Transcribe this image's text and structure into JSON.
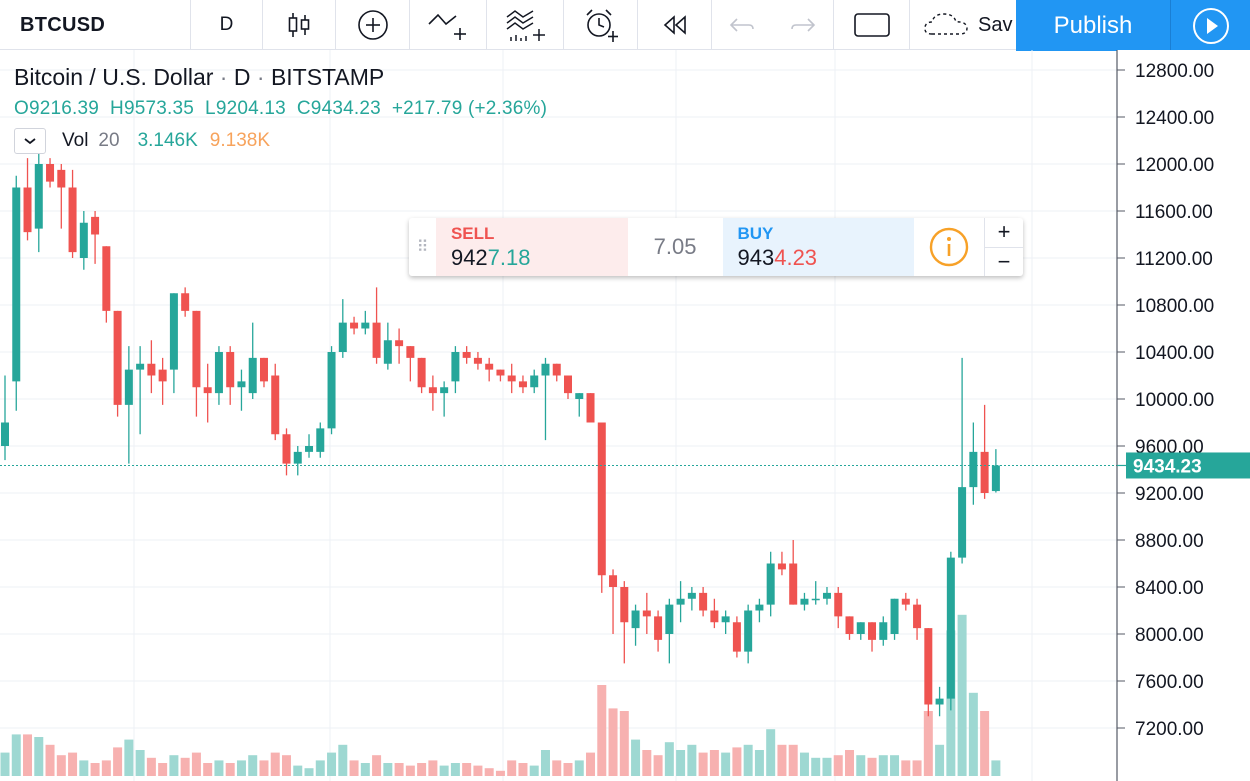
{
  "toolbar": {
    "symbol": "BTCUSD",
    "resolution": "D",
    "save_label": "Sav",
    "publish_label": "Publish"
  },
  "legend": {
    "title": "Bitcoin / U.S. Dollar",
    "sep": "·",
    "interval": "D",
    "exchange": "BITSTAMP",
    "open": "9216.39",
    "high": "9573.35",
    "low": "9204.13",
    "close": "9434.23",
    "change": "+217.79 (+2.36%)",
    "volume_label": "Vol",
    "volume_length": "20",
    "volume_value": "3.146K",
    "volume_ma": "9.138K"
  },
  "trade": {
    "sell_label": "SELL",
    "sell_price_main": "942",
    "sell_price_hl": "7.18",
    "spread": "7.05",
    "buy_label": "BUY",
    "buy_price_main": "943",
    "buy_price_hl": "4.23",
    "plus": "+",
    "minus": "−"
  },
  "colors": {
    "up": "#26a69a",
    "down": "#ef5350",
    "vol_up": "#9ed8d2",
    "vol_down": "#f7b1b0",
    "accent": "#2196f3",
    "info": "#f7a128"
  },
  "chart_data": {
    "type": "candlestick",
    "title": "Bitcoin / U.S. Dollar · D · BITSTAMP",
    "ylim": [
      6950,
      13000
    ],
    "y_ticks": [
      "12800.00",
      "12400.00",
      "12000.00",
      "11600.00",
      "11200.00",
      "10800.00",
      "10400.00",
      "10000.00",
      "9600.00",
      "9200.00",
      "8800.00",
      "8400.00",
      "8000.00",
      "7600.00",
      "7200.00"
    ],
    "last_price": "9434.23",
    "grid": true,
    "candles": [
      {
        "o": 9600,
        "h": 10200,
        "l": 9480,
        "c": 9800,
        "v": 0.9
      },
      {
        "o": 10150,
        "h": 11900,
        "l": 9900,
        "c": 11800,
        "v": 1.6
      },
      {
        "o": 11800,
        "h": 12050,
        "l": 11350,
        "c": 11420,
        "v": 1.6
      },
      {
        "o": 11450,
        "h": 12150,
        "l": 11250,
        "c": 12000,
        "v": 1.5
      },
      {
        "o": 12000,
        "h": 12050,
        "l": 11800,
        "c": 11850,
        "v": 1.2
      },
      {
        "o": 11950,
        "h": 12000,
        "l": 11450,
        "c": 11800,
        "v": 0.8
      },
      {
        "o": 11800,
        "h": 11950,
        "l": 11200,
        "c": 11250,
        "v": 0.9
      },
      {
        "o": 11200,
        "h": 11600,
        "l": 11100,
        "c": 11500,
        "v": 0.6
      },
      {
        "o": 11550,
        "h": 11600,
        "l": 11150,
        "c": 11400,
        "v": 0.5
      },
      {
        "o": 11300,
        "h": 11300,
        "l": 10650,
        "c": 10750,
        "v": 0.6
      },
      {
        "o": 10750,
        "h": 10750,
        "l": 9850,
        "c": 9950,
        "v": 1.1
      },
      {
        "o": 9950,
        "h": 10450,
        "l": 9450,
        "c": 10250,
        "v": 1.4
      },
      {
        "o": 10250,
        "h": 10450,
        "l": 9700,
        "c": 10300,
        "v": 1.0
      },
      {
        "o": 10300,
        "h": 10500,
        "l": 10050,
        "c": 10200,
        "v": 0.7
      },
      {
        "o": 10250,
        "h": 10350,
        "l": 9950,
        "c": 10150,
        "v": 0.5
      },
      {
        "o": 10250,
        "h": 10900,
        "l": 10050,
        "c": 10900,
        "v": 0.8
      },
      {
        "o": 10900,
        "h": 10950,
        "l": 10700,
        "c": 10750,
        "v": 0.7
      },
      {
        "o": 10750,
        "h": 10750,
        "l": 9850,
        "c": 10100,
        "v": 0.9
      },
      {
        "o": 10100,
        "h": 10300,
        "l": 9800,
        "c": 10050,
        "v": 0.5
      },
      {
        "o": 10050,
        "h": 10450,
        "l": 9950,
        "c": 10400,
        "v": 0.6
      },
      {
        "o": 10400,
        "h": 10450,
        "l": 9950,
        "c": 10100,
        "v": 0.5
      },
      {
        "o": 10100,
        "h": 10250,
        "l": 9900,
        "c": 10150,
        "v": 0.6
      },
      {
        "o": 10050,
        "h": 10650,
        "l": 10000,
        "c": 10350,
        "v": 0.8
      },
      {
        "o": 10350,
        "h": 10350,
        "l": 10100,
        "c": 10150,
        "v": 0.6
      },
      {
        "o": 10200,
        "h": 10300,
        "l": 9650,
        "c": 9700,
        "v": 0.9
      },
      {
        "o": 9700,
        "h": 9750,
        "l": 9350,
        "c": 9450,
        "v": 0.8
      },
      {
        "o": 9450,
        "h": 9600,
        "l": 9350,
        "c": 9550,
        "v": 0.4
      },
      {
        "o": 9550,
        "h": 9700,
        "l": 9500,
        "c": 9600,
        "v": 0.3
      },
      {
        "o": 9550,
        "h": 9800,
        "l": 9500,
        "c": 9750,
        "v": 0.6
      },
      {
        "o": 9750,
        "h": 10450,
        "l": 9700,
        "c": 10400,
        "v": 0.9
      },
      {
        "o": 10400,
        "h": 10850,
        "l": 10350,
        "c": 10650,
        "v": 1.2
      },
      {
        "o": 10650,
        "h": 10700,
        "l": 10550,
        "c": 10600,
        "v": 0.6
      },
      {
        "o": 10600,
        "h": 10750,
        "l": 10550,
        "c": 10650,
        "v": 0.5
      },
      {
        "o": 10650,
        "h": 10950,
        "l": 10300,
        "c": 10350,
        "v": 0.8
      },
      {
        "o": 10300,
        "h": 10650,
        "l": 10250,
        "c": 10500,
        "v": 0.5
      },
      {
        "o": 10500,
        "h": 10600,
        "l": 10300,
        "c": 10450,
        "v": 0.5
      },
      {
        "o": 10450,
        "h": 10450,
        "l": 10150,
        "c": 10350,
        "v": 0.4
      },
      {
        "o": 10350,
        "h": 10350,
        "l": 10050,
        "c": 10100,
        "v": 0.5
      },
      {
        "o": 10100,
        "h": 10200,
        "l": 9900,
        "c": 10050,
        "v": 0.6
      },
      {
        "o": 10050,
        "h": 10150,
        "l": 9850,
        "c": 10100,
        "v": 0.4
      },
      {
        "o": 10150,
        "h": 10450,
        "l": 10050,
        "c": 10400,
        "v": 0.5
      },
      {
        "o": 10400,
        "h": 10450,
        "l": 10300,
        "c": 10350,
        "v": 0.5
      },
      {
        "o": 10350,
        "h": 10400,
        "l": 10250,
        "c": 10300,
        "v": 0.4
      },
      {
        "o": 10300,
        "h": 10350,
        "l": 10150,
        "c": 10250,
        "v": 0.3
      },
      {
        "o": 10250,
        "h": 10250,
        "l": 10150,
        "c": 10200,
        "v": 0.2
      },
      {
        "o": 10200,
        "h": 10300,
        "l": 10050,
        "c": 10150,
        "v": 0.6
      },
      {
        "o": 10150,
        "h": 10200,
        "l": 10050,
        "c": 10100,
        "v": 0.5
      },
      {
        "o": 10100,
        "h": 10250,
        "l": 10050,
        "c": 10200,
        "v": 0.4
      },
      {
        "o": 10200,
        "h": 10350,
        "l": 9650,
        "c": 10300,
        "v": 1.0
      },
      {
        "o": 10300,
        "h": 10300,
        "l": 10150,
        "c": 10200,
        "v": 0.6
      },
      {
        "o": 10200,
        "h": 10200,
        "l": 10000,
        "c": 10050,
        "v": 0.5
      },
      {
        "o": 10000,
        "h": 10050,
        "l": 9850,
        "c": 10050,
        "v": 0.6
      },
      {
        "o": 10050,
        "h": 10050,
        "l": 9800,
        "c": 9800,
        "v": 0.9
      },
      {
        "o": 9800,
        "h": 9800,
        "l": 8350,
        "c": 8500,
        "v": 3.5
      },
      {
        "o": 8500,
        "h": 8550,
        "l": 8000,
        "c": 8400,
        "v": 2.6
      },
      {
        "o": 8400,
        "h": 8450,
        "l": 7750,
        "c": 8100,
        "v": 2.5
      },
      {
        "o": 8050,
        "h": 8250,
        "l": 7900,
        "c": 8200,
        "v": 1.4
      },
      {
        "o": 8200,
        "h": 8350,
        "l": 8000,
        "c": 8150,
        "v": 1.0
      },
      {
        "o": 8150,
        "h": 8200,
        "l": 7850,
        "c": 7950,
        "v": 0.8
      },
      {
        "o": 8000,
        "h": 8300,
        "l": 7750,
        "c": 8250,
        "v": 1.3
      },
      {
        "o": 8250,
        "h": 8450,
        "l": 8100,
        "c": 8300,
        "v": 1.0
      },
      {
        "o": 8300,
        "h": 8400,
        "l": 8200,
        "c": 8350,
        "v": 1.2
      },
      {
        "o": 8350,
        "h": 8400,
        "l": 8150,
        "c": 8200,
        "v": 0.9
      },
      {
        "o": 8200,
        "h": 8300,
        "l": 8050,
        "c": 8100,
        "v": 1.0
      },
      {
        "o": 8100,
        "h": 8200,
        "l": 8000,
        "c": 8150,
        "v": 0.9
      },
      {
        "o": 8100,
        "h": 8150,
        "l": 7800,
        "c": 7850,
        "v": 1.1
      },
      {
        "o": 7850,
        "h": 8250,
        "l": 7750,
        "c": 8200,
        "v": 1.2
      },
      {
        "o": 8200,
        "h": 8300,
        "l": 8100,
        "c": 8250,
        "v": 1.0
      },
      {
        "o": 8250,
        "h": 8700,
        "l": 8150,
        "c": 8600,
        "v": 1.8
      },
      {
        "o": 8600,
        "h": 8700,
        "l": 8500,
        "c": 8550,
        "v": 1.2
      },
      {
        "o": 8600,
        "h": 8800,
        "l": 8250,
        "c": 8250,
        "v": 1.2
      },
      {
        "o": 8250,
        "h": 8350,
        "l": 8200,
        "c": 8300,
        "v": 0.9
      },
      {
        "o": 8300,
        "h": 8450,
        "l": 8250,
        "c": 8300,
        "v": 0.7
      },
      {
        "o": 8300,
        "h": 8400,
        "l": 8250,
        "c": 8350,
        "v": 0.7
      },
      {
        "o": 8350,
        "h": 8400,
        "l": 8050,
        "c": 8150,
        "v": 0.8
      },
      {
        "o": 8150,
        "h": 8150,
        "l": 7950,
        "c": 8000,
        "v": 1.0
      },
      {
        "o": 8000,
        "h": 8100,
        "l": 7950,
        "c": 8100,
        "v": 0.8
      },
      {
        "o": 8100,
        "h": 8100,
        "l": 7850,
        "c": 7950,
        "v": 0.7
      },
      {
        "o": 7950,
        "h": 8150,
        "l": 7900,
        "c": 8100,
        "v": 0.8
      },
      {
        "o": 8000,
        "h": 8300,
        "l": 7950,
        "c": 8300,
        "v": 0.8
      },
      {
        "o": 8300,
        "h": 8350,
        "l": 8200,
        "c": 8250,
        "v": 0.6
      },
      {
        "o": 8250,
        "h": 8300,
        "l": 7950,
        "c": 8050,
        "v": 0.6
      },
      {
        "o": 8050,
        "h": 8050,
        "l": 7300,
        "c": 7400,
        "v": 2.5
      },
      {
        "o": 7400,
        "h": 7550,
        "l": 7300,
        "c": 7450,
        "v": 1.2
      },
      {
        "o": 7450,
        "h": 8700,
        "l": 7350,
        "c": 8650,
        "v": 5.6
      },
      {
        "o": 8650,
        "h": 10350,
        "l": 8600,
        "c": 9250,
        "v": 6.2
      },
      {
        "o": 9250,
        "h": 9800,
        "l": 9100,
        "c": 9550,
        "v": 3.2
      },
      {
        "o": 9550,
        "h": 9950,
        "l": 9150,
        "c": 9200,
        "v": 2.5
      },
      {
        "o": 9216.39,
        "h": 9573.35,
        "l": 9204.13,
        "c": 9434.23,
        "v": 0.6
      }
    ]
  }
}
